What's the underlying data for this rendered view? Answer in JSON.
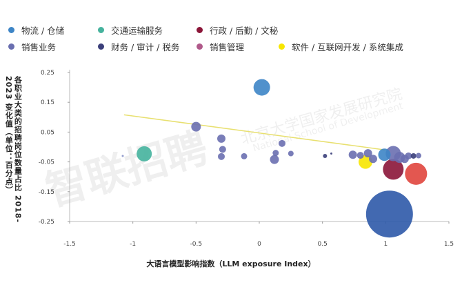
{
  "legend": [
    {
      "label": "物流 / 仓储",
      "color": "#3d85c6"
    },
    {
      "label": "交通运输服务",
      "color": "#45b29d"
    },
    {
      "label": "行政 / 后勤 / 文秘",
      "color": "#8b1538"
    },
    {
      "label": "销售业务",
      "color": "#6a6fb0"
    },
    {
      "label": "财务 / 审计 / 税务",
      "color": "#3b3f7a"
    },
    {
      "label": "销售管理",
      "color": "#b05a8a"
    },
    {
      "label": "软件 / 互联网开发 / 系统集成",
      "color": "#f7e600"
    }
  ],
  "watermarks": {
    "logo": "智联招聘",
    "cn": "北京大学国家发展研究院",
    "en": "National School of Development"
  },
  "chart_data": {
    "type": "scatter",
    "title": "",
    "xlabel": "大语言模型影响指数（LLM exposure Index）",
    "ylabel": "各职业大类的招聘岗位数量占比 2018-2023 变化值（单位：百分点）",
    "xlim": [
      -1.5,
      1.5
    ],
    "ylim": [
      -0.25,
      0.25
    ],
    "x_ticks": [
      -1.5,
      -1,
      -0.5,
      0,
      0.5,
      1,
      1.5
    ],
    "y_ticks": [
      0.25,
      0.15,
      0.05,
      -0.05,
      -0.15,
      -0.25
    ],
    "x_tick_labels": [
      "-1.5",
      "-1",
      "-0.5",
      "0",
      "0.5",
      "1",
      "1.5"
    ],
    "y_tick_labels": [
      "0.25",
      "0.15",
      "0.05",
      "-0.05",
      "-0.15",
      "-0.25"
    ],
    "trendline": {
      "x": [
        -1.07,
        1.0
      ],
      "y": [
        0.108,
        -0.01
      ],
      "color": "#e8e070"
    },
    "points": [
      {
        "x": 0.02,
        "y": 0.2,
        "r": 12,
        "color": "#3d85c6"
      },
      {
        "x": -0.91,
        "y": -0.023,
        "r": 11,
        "color": "#45b29d"
      },
      {
        "x": -1.08,
        "y": -0.03,
        "r": 1.5,
        "color": "#8a93c9"
      },
      {
        "x": -0.5,
        "y": 0.068,
        "r": 7,
        "color": "#6a6fb0"
      },
      {
        "x": -0.3,
        "y": 0.028,
        "r": 6,
        "color": "#6a6fb0"
      },
      {
        "x": -0.29,
        "y": -0.008,
        "r": 5,
        "color": "#6a6fb0"
      },
      {
        "x": -0.3,
        "y": -0.032,
        "r": 5,
        "color": "#6a6fb0"
      },
      {
        "x": -0.12,
        "y": -0.031,
        "r": 4.5,
        "color": "#6a6fb0"
      },
      {
        "x": 0.13,
        "y": -0.02,
        "r": 4.5,
        "color": "#6a6fb0"
      },
      {
        "x": 0.12,
        "y": -0.042,
        "r": 6.5,
        "color": "#6a6fb0"
      },
      {
        "x": 0.18,
        "y": 0.012,
        "r": 5,
        "color": "#6a6fb0"
      },
      {
        "x": 0.25,
        "y": -0.022,
        "r": 4,
        "color": "#6a6fb0"
      },
      {
        "x": 0.52,
        "y": -0.03,
        "r": 3,
        "color": "#3b3f7a"
      },
      {
        "x": 0.57,
        "y": -0.022,
        "r": 1.5,
        "color": "#3b3f7a"
      },
      {
        "x": 0.74,
        "y": -0.026,
        "r": 6,
        "color": "#6a6fb0"
      },
      {
        "x": 0.8,
        "y": -0.028,
        "r": 5,
        "color": "#6a6fb0"
      },
      {
        "x": 0.86,
        "y": -0.021,
        "r": 6,
        "color": "#6a6fb0"
      },
      {
        "x": 0.9,
        "y": -0.04,
        "r": 6,
        "color": "#6a6fb0"
      },
      {
        "x": 0.84,
        "y": -0.05,
        "r": 10,
        "color": "#f7e600"
      },
      {
        "x": 0.99,
        "y": -0.026,
        "r": 9,
        "color": "#3d85c6"
      },
      {
        "x": 1.06,
        "y": -0.022,
        "r": 11,
        "color": "#6a6fb0"
      },
      {
        "x": 1.11,
        "y": -0.035,
        "r": 8,
        "color": "#6a6fb0"
      },
      {
        "x": 1.15,
        "y": -0.04,
        "r": 6,
        "color": "#6a6fb0"
      },
      {
        "x": 1.18,
        "y": -0.03,
        "r": 5,
        "color": "#6a6fb0"
      },
      {
        "x": 1.22,
        "y": -0.03,
        "r": 4,
        "color": "#3b3f7a"
      },
      {
        "x": 1.26,
        "y": -0.029,
        "r": 4,
        "color": "#6a6fb0"
      },
      {
        "x": 1.06,
        "y": -0.075,
        "r": 15,
        "color": "#8b1538"
      },
      {
        "x": 1.24,
        "y": -0.09,
        "r": 16,
        "color": "#e0453d"
      },
      {
        "x": 1.03,
        "y": -0.225,
        "r": 34,
        "color": "#2e59a8"
      }
    ]
  }
}
